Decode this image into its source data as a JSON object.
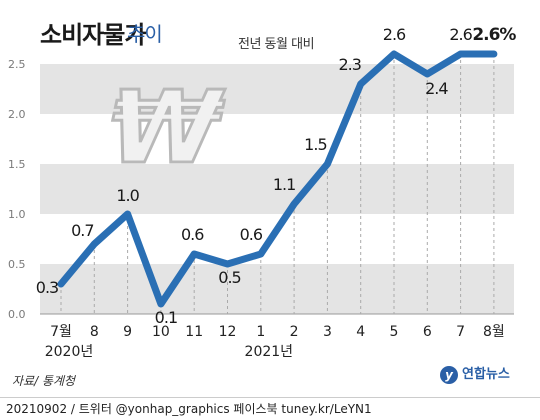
{
  "title": "소비자물가",
  "subtitle": "추이",
  "unit_note": "전년 동월 대비",
  "source": "자료/ 통계청",
  "logo_text": "연합뉴스",
  "footer": "20210902 / 트위터 @yonhap_graphics  페이스북 tuney.kr/LeYN1",
  "colors": {
    "line": "#2a6fb4",
    "band": "#e4e4e4",
    "title_sub": "#2a5fa6"
  },
  "icon": "won-currency-sign-icon",
  "chart_data": {
    "type": "line",
    "categories": [
      "7월",
      "8",
      "9",
      "10",
      "11",
      "12",
      "1",
      "2",
      "3",
      "4",
      "5",
      "6",
      "7",
      "8월"
    ],
    "year_labels": [
      "2020년",
      "2021년"
    ],
    "values": [
      0.3,
      0.7,
      1.0,
      0.1,
      0.6,
      0.5,
      0.6,
      1.1,
      1.5,
      2.3,
      2.6,
      2.4,
      2.6,
      2.6
    ],
    "data_labels": [
      "0.3",
      "0.7",
      "1.0",
      "0.1",
      "0.6",
      "0.5",
      "0.6",
      "1.1",
      "1.5",
      "2.3",
      "2.6",
      "2.4",
      "2.6",
      "2.6%"
    ],
    "ylim": [
      0,
      2.5
    ],
    "yticks": [
      "0.0",
      "0.5",
      "1.0",
      "1.5",
      "2.0",
      "2.5"
    ],
    "grid": "alternating horizontal bands with dashed vertical lines"
  }
}
